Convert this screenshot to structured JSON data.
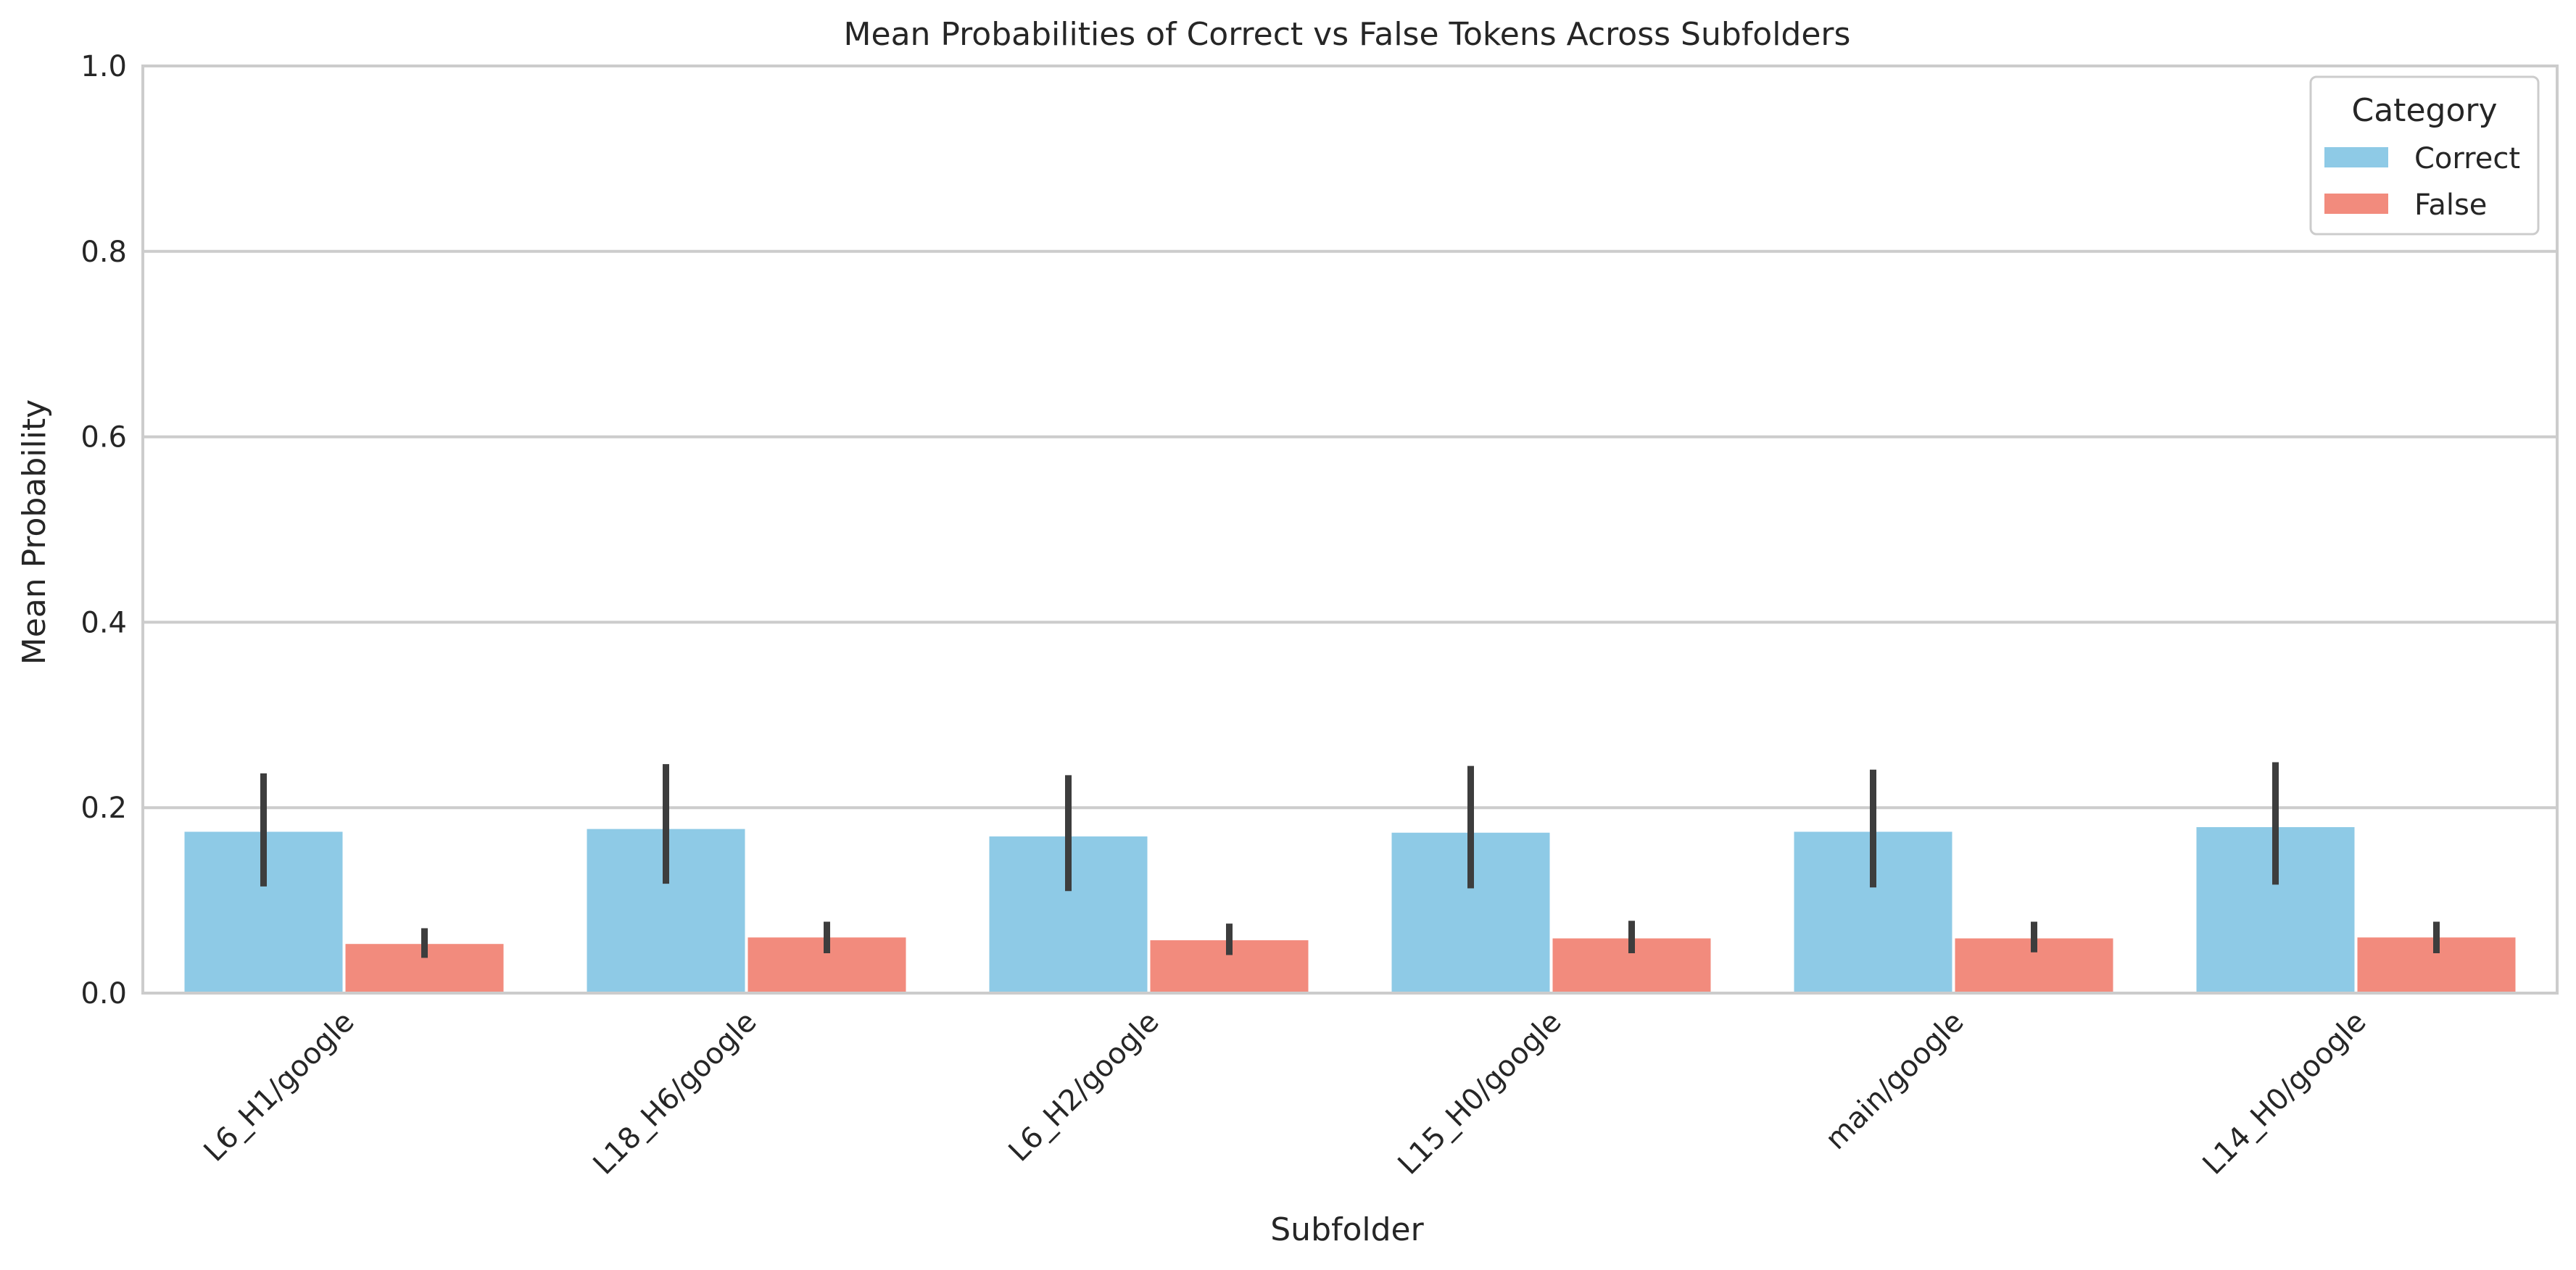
{
  "chart_data": {
    "type": "bar",
    "title": "Mean Probabilities of Correct vs False Tokens Across Subfolders",
    "xlabel": "Subfolder",
    "ylabel": "Mean Probability",
    "ylim": [
      0,
      1.0
    ],
    "yticks": [
      "0.0",
      "0.2",
      "0.4",
      "0.6",
      "0.8",
      "1.0"
    ],
    "grid": "horizontal",
    "categories": [
      "L6_H1/google",
      "L18_H6/google",
      "L6_H2/google",
      "L15_H0/google",
      "main/google",
      "L14_H0/google"
    ],
    "series": [
      {
        "name": "Correct",
        "color": "#8ecae6",
        "values": [
          0.174,
          0.177,
          0.169,
          0.173,
          0.174,
          0.179
        ],
        "error_low": [
          0.115,
          0.118,
          0.11,
          0.113,
          0.114,
          0.117
        ],
        "error_high": [
          0.237,
          0.247,
          0.235,
          0.245,
          0.241,
          0.249
        ]
      },
      {
        "name": "False",
        "color": "#f28b7d",
        "values": [
          0.053,
          0.06,
          0.057,
          0.059,
          0.059,
          0.06
        ],
        "error_low": [
          0.038,
          0.043,
          0.041,
          0.043,
          0.044,
          0.043
        ],
        "error_high": [
          0.07,
          0.077,
          0.075,
          0.078,
          0.077,
          0.077
        ]
      }
    ],
    "legend": {
      "title": "Category",
      "position": "top-right"
    }
  }
}
